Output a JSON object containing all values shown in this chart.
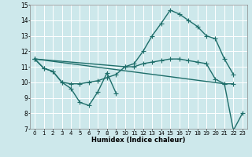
{
  "xlabel": "Humidex (Indice chaleur)",
  "xlim": [
    -0.5,
    23.5
  ],
  "ylim": [
    7,
    15
  ],
  "yticks": [
    7,
    8,
    9,
    10,
    11,
    12,
    13,
    14,
    15
  ],
  "xticks": [
    0,
    1,
    2,
    3,
    4,
    5,
    6,
    7,
    8,
    9,
    10,
    11,
    12,
    13,
    14,
    15,
    16,
    17,
    18,
    19,
    20,
    21,
    22,
    23
  ],
  "bg_color": "#cde8eb",
  "grid_color": "#ffffff",
  "line_color": "#1e6e6a",
  "line_width": 1.0,
  "marker": "+",
  "marker_size": 4,
  "series": [
    {
      "x": [
        0,
        1,
        2,
        3,
        4,
        5,
        6,
        7,
        8,
        9
      ],
      "y": [
        11.5,
        10.9,
        10.7,
        10.0,
        9.6,
        8.7,
        8.5,
        9.4,
        10.6,
        9.3
      ]
    },
    {
      "x": [
        0,
        1,
        2,
        3,
        4,
        5,
        6,
        7,
        8,
        9,
        10,
        11,
        12,
        13,
        14,
        15,
        16,
        17,
        18,
        19,
        20,
        21,
        22
      ],
      "y": [
        11.5,
        10.9,
        10.7,
        10.0,
        9.9,
        9.9,
        10.0,
        10.1,
        10.3,
        10.5,
        11.0,
        11.0,
        11.2,
        11.3,
        11.4,
        11.5,
        11.5,
        11.4,
        11.3,
        11.2,
        10.2,
        9.9,
        9.9
      ]
    },
    {
      "x": [
        0,
        10,
        11,
        12,
        13,
        14,
        15,
        16,
        17,
        18,
        19,
        20,
        21,
        22
      ],
      "y": [
        11.5,
        11.0,
        11.2,
        12.0,
        13.0,
        13.8,
        14.65,
        14.4,
        14.0,
        13.6,
        13.0,
        12.8,
        11.5,
        10.5
      ]
    },
    {
      "x": [
        0,
        21,
        22,
        23
      ],
      "y": [
        11.5,
        9.9,
        6.9,
        8.0
      ]
    }
  ]
}
